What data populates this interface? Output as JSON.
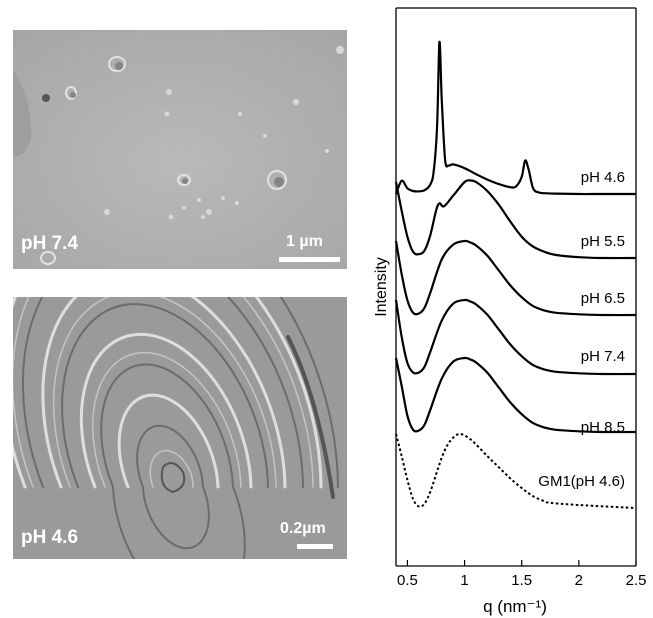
{
  "panels": [
    {
      "label": "pH 7.4",
      "scale_label": "1 µm"
    },
    {
      "label": "pH 4.6",
      "scale_label": "0.2µm"
    }
  ],
  "chart_data": {
    "type": "line",
    "xlabel": "q (nm⁻¹)",
    "ylabel": "Intensity",
    "xlim": [
      0.4,
      2.5
    ],
    "x_ticks": [
      0.5,
      1,
      1.5,
      2,
      2.5
    ],
    "x_tick_labels": [
      "0.5",
      "1",
      "1.5",
      "2",
      "2.5"
    ],
    "y_ticks_shown": false,
    "grid": false,
    "series": [
      {
        "name": "pH 4.6",
        "style": "solid",
        "x": [
          0.4,
          0.45,
          0.5,
          0.55,
          0.6,
          0.65,
          0.7,
          0.73,
          0.76,
          0.78,
          0.8,
          0.83,
          0.86,
          0.9,
          1.0,
          1.1,
          1.2,
          1.3,
          1.4,
          1.45,
          1.5,
          1.53,
          1.56,
          1.6,
          1.65,
          1.7,
          1.8,
          2.0,
          2.2,
          2.5
        ],
        "y": [
          0.0,
          0.35,
          0.15,
          0.08,
          0.07,
          0.1,
          0.25,
          0.6,
          1.8,
          4.0,
          2.5,
          0.9,
          0.75,
          0.78,
          0.68,
          0.52,
          0.38,
          0.26,
          0.18,
          0.2,
          0.45,
          0.88,
          0.65,
          0.15,
          0.04,
          0.02,
          0.01,
          0.0,
          0.0,
          0.0
        ]
      },
      {
        "name": "pH 5.5",
        "style": "solid",
        "x": [
          0.4,
          0.45,
          0.5,
          0.55,
          0.6,
          0.65,
          0.7,
          0.75,
          0.78,
          0.82,
          0.9,
          1.0,
          1.05,
          1.1,
          1.2,
          1.3,
          1.4,
          1.5,
          1.6,
          1.7,
          1.8,
          2.0,
          2.2,
          2.5
        ],
        "y": [
          1.0,
          0.62,
          0.28,
          0.08,
          0.05,
          0.1,
          0.3,
          0.62,
          0.72,
          0.68,
          0.82,
          1.0,
          1.02,
          1.0,
          0.88,
          0.7,
          0.48,
          0.28,
          0.15,
          0.08,
          0.04,
          0.01,
          0.0,
          0.0
        ]
      },
      {
        "name": "pH 6.5",
        "style": "solid",
        "x": [
          0.4,
          0.45,
          0.5,
          0.55,
          0.6,
          0.65,
          0.7,
          0.8,
          0.9,
          1.0,
          1.05,
          1.1,
          1.2,
          1.3,
          1.4,
          1.5,
          1.6,
          1.7,
          1.8,
          2.0,
          2.2,
          2.5
        ],
        "y": [
          1.0,
          0.55,
          0.2,
          0.03,
          0.02,
          0.1,
          0.3,
          0.75,
          0.95,
          1.0,
          0.98,
          0.94,
          0.8,
          0.6,
          0.4,
          0.24,
          0.12,
          0.06,
          0.03,
          0.01,
          0.0,
          0.0
        ]
      },
      {
        "name": "pH 7.4",
        "style": "solid",
        "x": [
          0.4,
          0.45,
          0.5,
          0.55,
          0.6,
          0.65,
          0.7,
          0.8,
          0.9,
          1.0,
          1.05,
          1.1,
          1.2,
          1.3,
          1.4,
          1.5,
          1.6,
          1.7,
          1.8,
          2.0,
          2.2,
          2.5
        ],
        "y": [
          1.0,
          0.5,
          0.15,
          0.02,
          0.02,
          0.1,
          0.3,
          0.72,
          0.95,
          1.0,
          0.98,
          0.94,
          0.8,
          0.6,
          0.4,
          0.24,
          0.12,
          0.06,
          0.03,
          0.01,
          0.0,
          0.0
        ]
      },
      {
        "name": "pH 8.5",
        "style": "solid",
        "x": [
          0.4,
          0.45,
          0.5,
          0.55,
          0.6,
          0.65,
          0.7,
          0.8,
          0.9,
          1.0,
          1.05,
          1.1,
          1.2,
          1.3,
          1.4,
          1.5,
          1.6,
          1.7,
          1.8,
          2.0,
          2.2,
          2.5
        ],
        "y": [
          1.0,
          0.62,
          0.22,
          0.03,
          0.02,
          0.1,
          0.3,
          0.72,
          0.95,
          1.0,
          0.98,
          0.94,
          0.8,
          0.6,
          0.4,
          0.24,
          0.12,
          0.06,
          0.03,
          0.01,
          0.0,
          0.0
        ]
      },
      {
        "name": "GM1(pH 4.6)",
        "style": "dotted",
        "x": [
          0.4,
          0.45,
          0.5,
          0.55,
          0.6,
          0.65,
          0.7,
          0.75,
          0.8,
          0.85,
          0.9,
          0.95,
          1.0,
          1.05,
          1.1,
          1.2,
          1.3,
          1.4,
          1.5,
          1.6,
          1.7,
          1.75,
          2.0,
          2.5
        ],
        "y": [
          1.0,
          0.7,
          0.38,
          0.12,
          0.02,
          0.06,
          0.22,
          0.45,
          0.68,
          0.85,
          0.95,
          1.0,
          0.98,
          0.93,
          0.86,
          0.7,
          0.55,
          0.4,
          0.27,
          0.16,
          0.09,
          0.07,
          0.04,
          0.0
        ]
      }
    ]
  }
}
